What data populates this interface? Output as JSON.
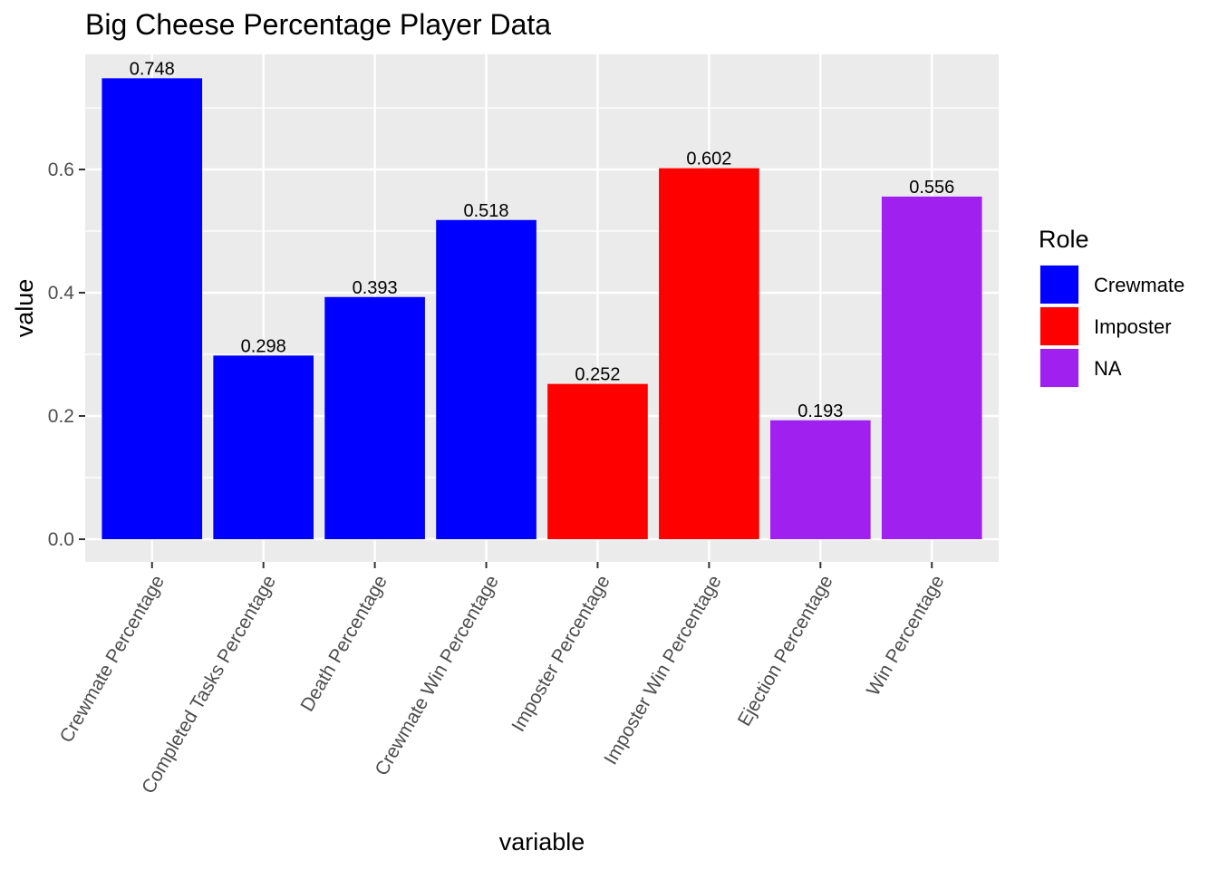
{
  "chart_data": {
    "type": "bar",
    "title": "Big Cheese Percentage Player Data",
    "xlabel": "variable",
    "ylabel": "value",
    "ylim": [
      0,
      0.785
    ],
    "yticks": [
      "0.0",
      "0.2",
      "0.4",
      "0.6"
    ],
    "ytick_values": [
      0,
      0.2,
      0.4,
      0.6
    ],
    "grid": true,
    "categories": [
      "Crewmate Percentage",
      "Completed Tasks Percentage",
      "Death Percentage",
      "Crewmate Win Percentage",
      "Imposter Percentage",
      "Imposter Win Percentage",
      "Ejection Percentage",
      "Win Percentage"
    ],
    "values": [
      0.748,
      0.298,
      0.393,
      0.518,
      0.252,
      0.602,
      0.193,
      0.556
    ],
    "data_labels": [
      "0.748",
      "0.298",
      "0.393",
      "0.518",
      "0.252",
      "0.602",
      "0.193",
      "0.556"
    ],
    "roles": [
      "Crewmate",
      "Crewmate",
      "Crewmate",
      "Crewmate",
      "Imposter",
      "Imposter",
      "NA",
      "NA"
    ],
    "legend": {
      "title": "Role",
      "placement": "right",
      "entries": [
        {
          "name": "Crewmate",
          "color": "#0000ff"
        },
        {
          "name": "Imposter",
          "color": "#ff0000"
        },
        {
          "name": "NA",
          "color": "#a020f0"
        }
      ]
    },
    "colors": {
      "panel_background": "#ebebeb",
      "grid_line": "#ffffff",
      "tick_text": "#4d4d4d",
      "tick_mark": "#333333"
    }
  }
}
